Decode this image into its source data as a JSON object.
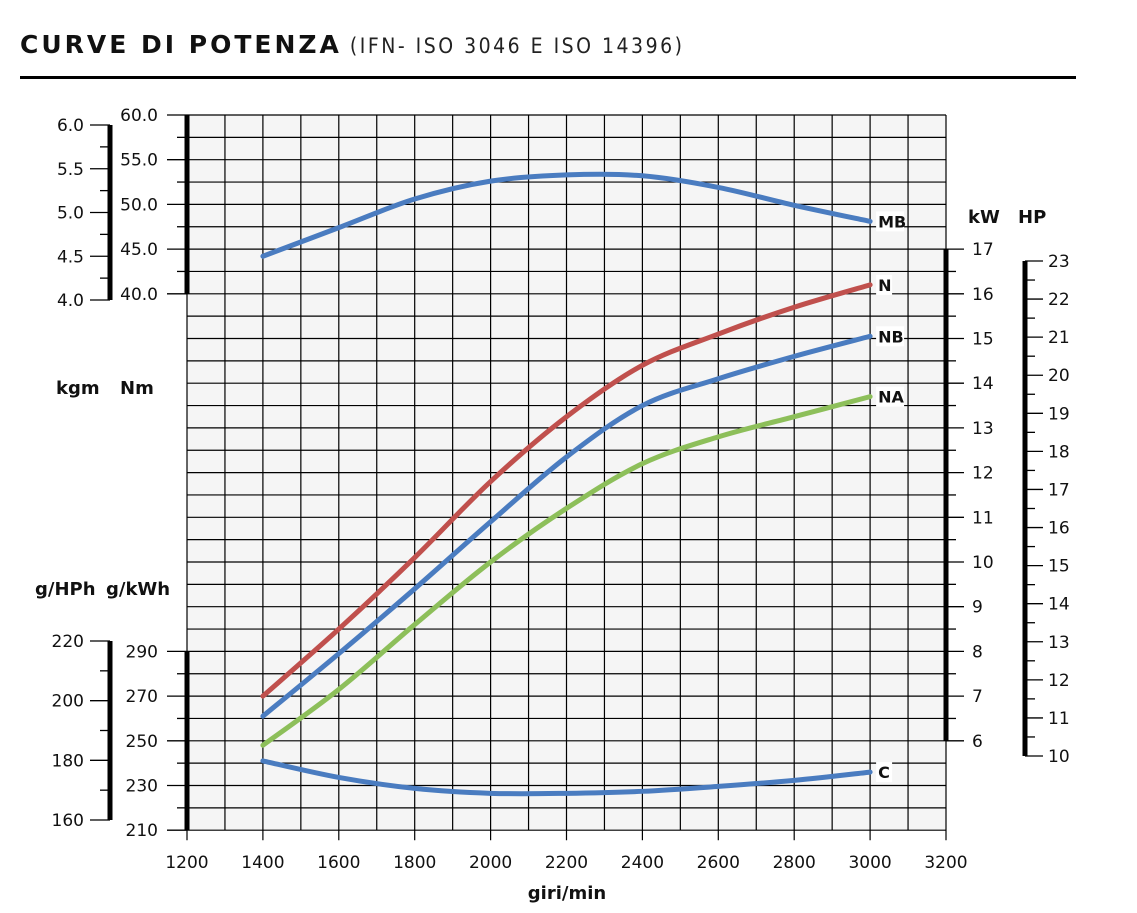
{
  "header": {
    "title": "CURVE DI POTENZA",
    "subtitle": "(IFN- ISO 3046 E ISO 14396)"
  },
  "chart_data": {
    "type": "line",
    "title": "CURVE DI POTENZA",
    "subtitle": "(IFN- ISO 3046 E ISO 14396)",
    "xlabel": "giri/min",
    "xlim": [
      1200,
      3200
    ],
    "xticks": [
      "1200",
      "1400",
      "1600",
      "1800",
      "2000",
      "2200",
      "2400",
      "2600",
      "2800",
      "3000",
      "3200"
    ],
    "grid": true,
    "axes": {
      "kgm": {
        "label": "kgm",
        "ticks": [
          "6.0",
          "5.5",
          "5.0",
          "4.5",
          "4.0"
        ],
        "range": [
          4.0,
          6.0
        ]
      },
      "Nm": {
        "label": "Nm",
        "ticks": [
          "60.0",
          "55.0",
          "50.0",
          "45.0",
          "40.0"
        ],
        "range": [
          40,
          60
        ]
      },
      "g_HPh": {
        "label": "g/HPh",
        "ticks": [
          "220",
          "200",
          "180",
          "160"
        ],
        "range": [
          160,
          220
        ]
      },
      "g_kWh": {
        "label": "g/kWh",
        "ticks": [
          "290",
          "270",
          "250",
          "230",
          "210"
        ],
        "range": [
          210,
          290
        ]
      },
      "kW": {
        "label": "kW",
        "ticks": [
          "17",
          "16",
          "15",
          "14",
          "13",
          "12",
          "11",
          "10",
          "9",
          "8",
          "7",
          "6"
        ],
        "range": [
          6,
          17
        ]
      },
      "HP": {
        "label": "HP",
        "ticks": [
          "23",
          "22",
          "21",
          "20",
          "19",
          "18",
          "17",
          "16",
          "15",
          "14",
          "13",
          "12",
          "11",
          "10"
        ],
        "range": [
          10,
          23
        ]
      }
    },
    "x": [
      1400,
      1600,
      1800,
      2000,
      2200,
      2400,
      2600,
      2800,
      3000
    ],
    "series": [
      {
        "name": "MB",
        "axis": "Nm",
        "color": "#4a7cc0",
        "values": [
          44.2,
          47.4,
          50.6,
          52.6,
          53.3,
          53.2,
          51.9,
          49.9,
          48.1
        ]
      },
      {
        "name": "N",
        "axis": "kW",
        "color": "#c0504d",
        "values": [
          7.0,
          8.5,
          10.1,
          11.8,
          13.25,
          14.4,
          15.1,
          15.7,
          16.2
        ]
      },
      {
        "name": "NB",
        "axis": "kW",
        "color": "#4a7cc0",
        "values": [
          6.55,
          7.95,
          9.4,
          10.9,
          12.35,
          13.5,
          14.1,
          14.6,
          15.05
        ]
      },
      {
        "name": "NA",
        "axis": "kW",
        "color": "#8dbf5a",
        "values": [
          5.9,
          7.15,
          8.6,
          10.0,
          11.2,
          12.2,
          12.8,
          13.25,
          13.7
        ]
      },
      {
        "name": "C",
        "axis": "g_kWh",
        "color": "#4a7cc0",
        "values": [
          241,
          233.6,
          228.7,
          226.5,
          226.5,
          227.4,
          229.6,
          232.3,
          236
        ]
      }
    ]
  }
}
